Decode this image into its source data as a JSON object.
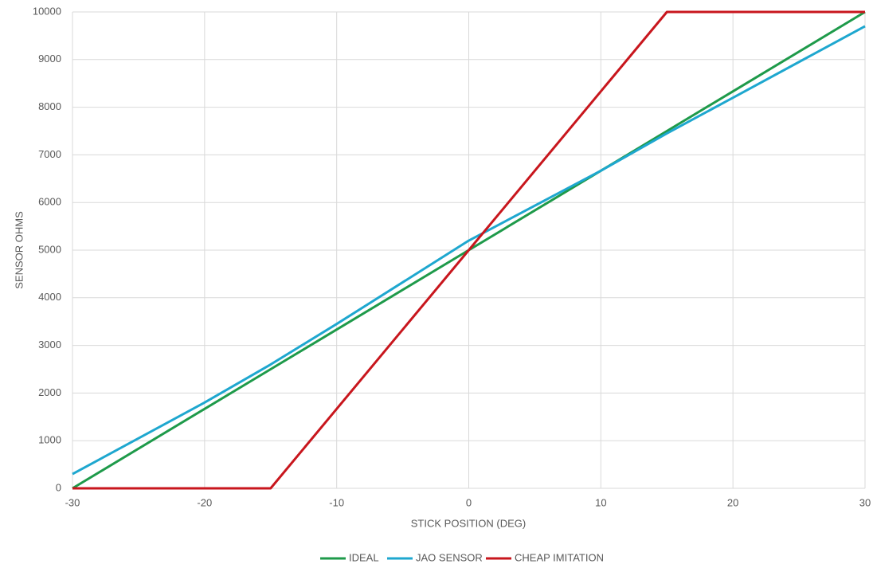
{
  "chart_data": {
    "type": "line",
    "x_label": "STICK POSITION (DEG)",
    "y_label": "SENSOR OHMS",
    "x": [
      -30,
      -20,
      -15,
      -10,
      0,
      10,
      15,
      20,
      30
    ],
    "series": [
      {
        "name": "IDEAL",
        "color": "#1e9a4a",
        "values": [
          0,
          1667,
          2500,
          3333,
          5000,
          6667,
          7500,
          8333,
          10000
        ]
      },
      {
        "name": "JAO SENSOR",
        "color": "#1ea7cf",
        "values": [
          300,
          1800,
          2600,
          3450,
          5200,
          6667,
          7450,
          8200,
          9700
        ]
      },
      {
        "name": "CHEAP IMITATION",
        "color": "#c8161d",
        "values": [
          0,
          0,
          0,
          1667,
          5000,
          8333,
          10000,
          10000,
          10000
        ]
      }
    ],
    "xlim": [
      -30,
      30
    ],
    "xticks": [
      -30,
      -20,
      -10,
      0,
      10,
      20,
      30
    ],
    "ylim": [
      0,
      10000
    ],
    "yticks": [
      0,
      1000,
      2000,
      3000,
      4000,
      5000,
      6000,
      7000,
      8000,
      9000,
      10000
    ],
    "grid": true,
    "legend": "bottom"
  }
}
